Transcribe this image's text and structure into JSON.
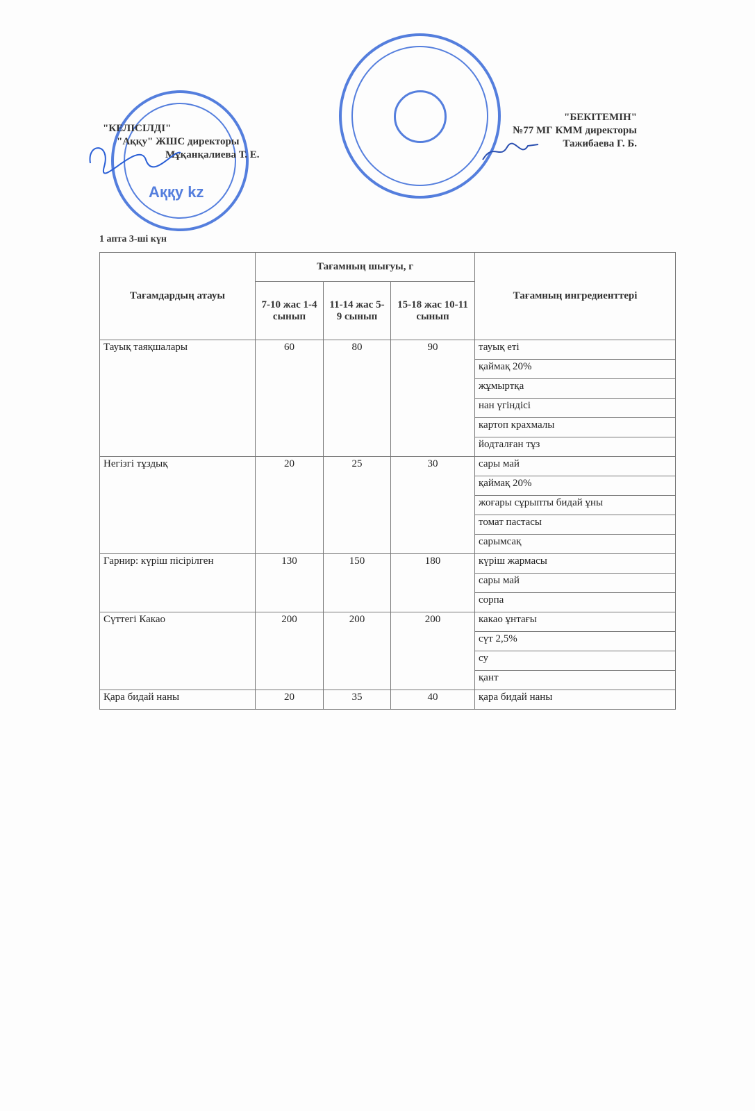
{
  "left_block": {
    "title": "\"КЕЛІСІЛДІ\"",
    "line1": "\"Аққу\" ЖШС директоры",
    "line2": "Мұқанқалиева Т. Е."
  },
  "right_block": {
    "title": "\"БЕКІТЕМІН\"",
    "line1": "№77 МГ КММ директоры",
    "line2": "Тажибаева Г. Б."
  },
  "stamp_left_text": "Аққу kz",
  "day_label": "1 апта 3-ші күн",
  "table": {
    "h_name": "Тағамдардың атауы",
    "h_yield": "Тағамның шығуы, г",
    "h_ingredients": "Тағамның ингредиенттері",
    "h_ages": [
      "7-10 жас 1-4 сынып",
      "11-14 жас 5-9 сынып",
      "15-18 жас 10-11 сынып"
    ],
    "dishes": [
      {
        "name": "Тауық таяқшалары",
        "values": [
          "60",
          "80",
          "90"
        ],
        "ingredients": [
          "тауық еті",
          "қаймақ 20%",
          "жұмыртқа",
          "нан үгіндісі",
          "картоп крахмалы",
          "йодталған тұз"
        ]
      },
      {
        "name": "Негізгі тұздық",
        "values": [
          "20",
          "25",
          "30"
        ],
        "ingredients": [
          "сары май",
          "қаймақ 20%",
          "жоғары сұрыпты бидай ұны",
          "томат пастасы",
          "сарымсақ"
        ]
      },
      {
        "name": "Гарнир: күріш пісірілген",
        "values": [
          "130",
          "150",
          "180"
        ],
        "ingredients": [
          "күріш жармасы",
          "сары май",
          "сорпа"
        ]
      },
      {
        "name": "Сүттегі Какао",
        "values": [
          "200",
          "200",
          "200"
        ],
        "ingredients": [
          "какао ұнтағы",
          "сүт 2,5%",
          "су",
          "қант"
        ]
      },
      {
        "name": "Қара бидай наны",
        "values": [
          "20",
          "35",
          "40"
        ],
        "ingredients": [
          "қара бидай наны"
        ]
      }
    ]
  }
}
